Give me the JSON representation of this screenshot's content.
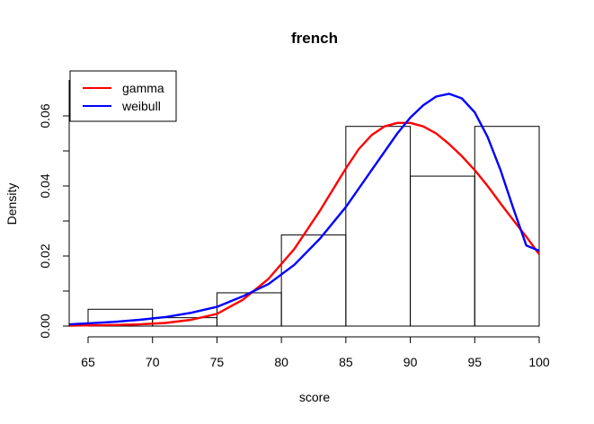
{
  "chart_data": {
    "type": "histogram",
    "title": "french",
    "xlabel": "score",
    "ylabel": "Density",
    "xlim": [
      63.5,
      100
    ],
    "ylim": [
      0,
      0.07
    ],
    "x_ticks": [
      "65",
      "70",
      "75",
      "80",
      "85",
      "90",
      "95",
      "100"
    ],
    "y_ticks": [
      "0.00",
      "0.02",
      "0.04",
      "0.06"
    ],
    "bins": [
      {
        "start": 65,
        "end": 70,
        "density": 0.0048
      },
      {
        "start": 70,
        "end": 75,
        "density": 0.0024
      },
      {
        "start": 75,
        "end": 80,
        "density": 0.0095
      },
      {
        "start": 80,
        "end": 85,
        "density": 0.026
      },
      {
        "start": 85,
        "end": 90,
        "density": 0.057
      },
      {
        "start": 90,
        "end": 95,
        "density": 0.0428
      },
      {
        "start": 95,
        "end": 100,
        "density": 0.057
      }
    ],
    "series": [
      {
        "name": "gamma",
        "color": "#ff0000",
        "x": [
          63.5,
          65,
          67,
          69,
          71,
          73,
          75,
          77,
          79,
          81,
          83,
          85,
          86,
          87,
          88,
          89,
          90,
          91,
          92,
          93,
          94,
          95,
          96,
          97,
          98,
          99,
          100
        ],
        "y": [
          0.0001,
          0.0002,
          0.0003,
          0.0005,
          0.0009,
          0.0018,
          0.0035,
          0.0075,
          0.0135,
          0.022,
          0.033,
          0.045,
          0.0505,
          0.0545,
          0.057,
          0.058,
          0.058,
          0.057,
          0.055,
          0.052,
          0.0485,
          0.0445,
          0.04,
          0.035,
          0.0302,
          0.0255,
          0.0205
        ]
      },
      {
        "name": "weibull",
        "color": "#0000ff",
        "x": [
          63.5,
          65,
          67,
          69,
          71,
          73,
          75,
          77,
          79,
          81,
          83,
          85,
          87,
          89,
          90,
          91,
          92,
          93,
          94,
          95,
          96,
          97,
          98,
          99,
          100
        ],
        "y": [
          0.0005,
          0.0008,
          0.0012,
          0.0018,
          0.0026,
          0.0038,
          0.0055,
          0.0085,
          0.012,
          0.0175,
          0.025,
          0.034,
          0.0445,
          0.055,
          0.0595,
          0.063,
          0.0655,
          0.0663,
          0.065,
          0.061,
          0.054,
          0.0445,
          0.0335,
          0.023,
          0.0215
        ]
      }
    ],
    "legend": {
      "position": "top-left",
      "entries": [
        "gamma",
        "weibull"
      ]
    },
    "grid": false
  }
}
